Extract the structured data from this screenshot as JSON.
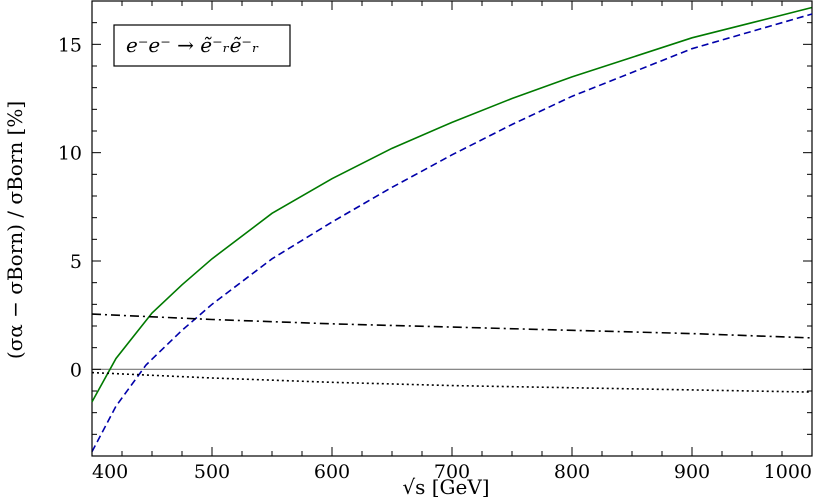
{
  "chart_data": {
    "type": "line",
    "title": "",
    "xlabel": "√s [GeV]",
    "ylabel": "(σα − σBorn) / σBorn [%]",
    "xlim": [
      400,
      1000
    ],
    "ylim": [
      -4,
      17
    ],
    "x_ticks": [
      400,
      500,
      600,
      700,
      800,
      900,
      1000
    ],
    "y_ticks": [
      0,
      5,
      10,
      15
    ],
    "grid": false,
    "legend_position": "top-left",
    "annotation": "e⁻e⁻ → ẽ⁻ᵣẽ⁻ᵣ",
    "reference_line_y": 0,
    "series": [
      {
        "style": "solid",
        "color": "#007a00",
        "x": [
          400,
          420,
          450,
          475,
          500,
          550,
          600,
          650,
          700,
          750,
          800,
          850,
          900,
          950,
          1000
        ],
        "y": [
          -1.5,
          0.5,
          2.6,
          3.9,
          5.1,
          7.2,
          8.8,
          10.2,
          11.4,
          12.5,
          13.5,
          14.4,
          15.3,
          16.0,
          16.7
        ]
      },
      {
        "style": "dashed",
        "color": "#0000aa",
        "x": [
          400,
          420,
          445,
          475,
          500,
          550,
          600,
          650,
          700,
          750,
          800,
          850,
          900,
          950,
          1000
        ],
        "y": [
          -3.8,
          -1.7,
          0.2,
          1.8,
          3.0,
          5.1,
          6.8,
          8.4,
          9.9,
          11.3,
          12.6,
          13.7,
          14.8,
          15.6,
          16.4
        ]
      },
      {
        "style": "dashdot",
        "color": "#000000",
        "x": [
          400,
          500,
          600,
          700,
          800,
          900,
          1000
        ],
        "y": [
          2.55,
          2.3,
          2.1,
          1.95,
          1.8,
          1.65,
          1.45
        ]
      },
      {
        "style": "dotted",
        "color": "#000000",
        "x": [
          400,
          500,
          600,
          700,
          800,
          900,
          1000
        ],
        "y": [
          -0.15,
          -0.4,
          -0.6,
          -0.75,
          -0.85,
          -0.95,
          -1.05
        ]
      }
    ]
  }
}
